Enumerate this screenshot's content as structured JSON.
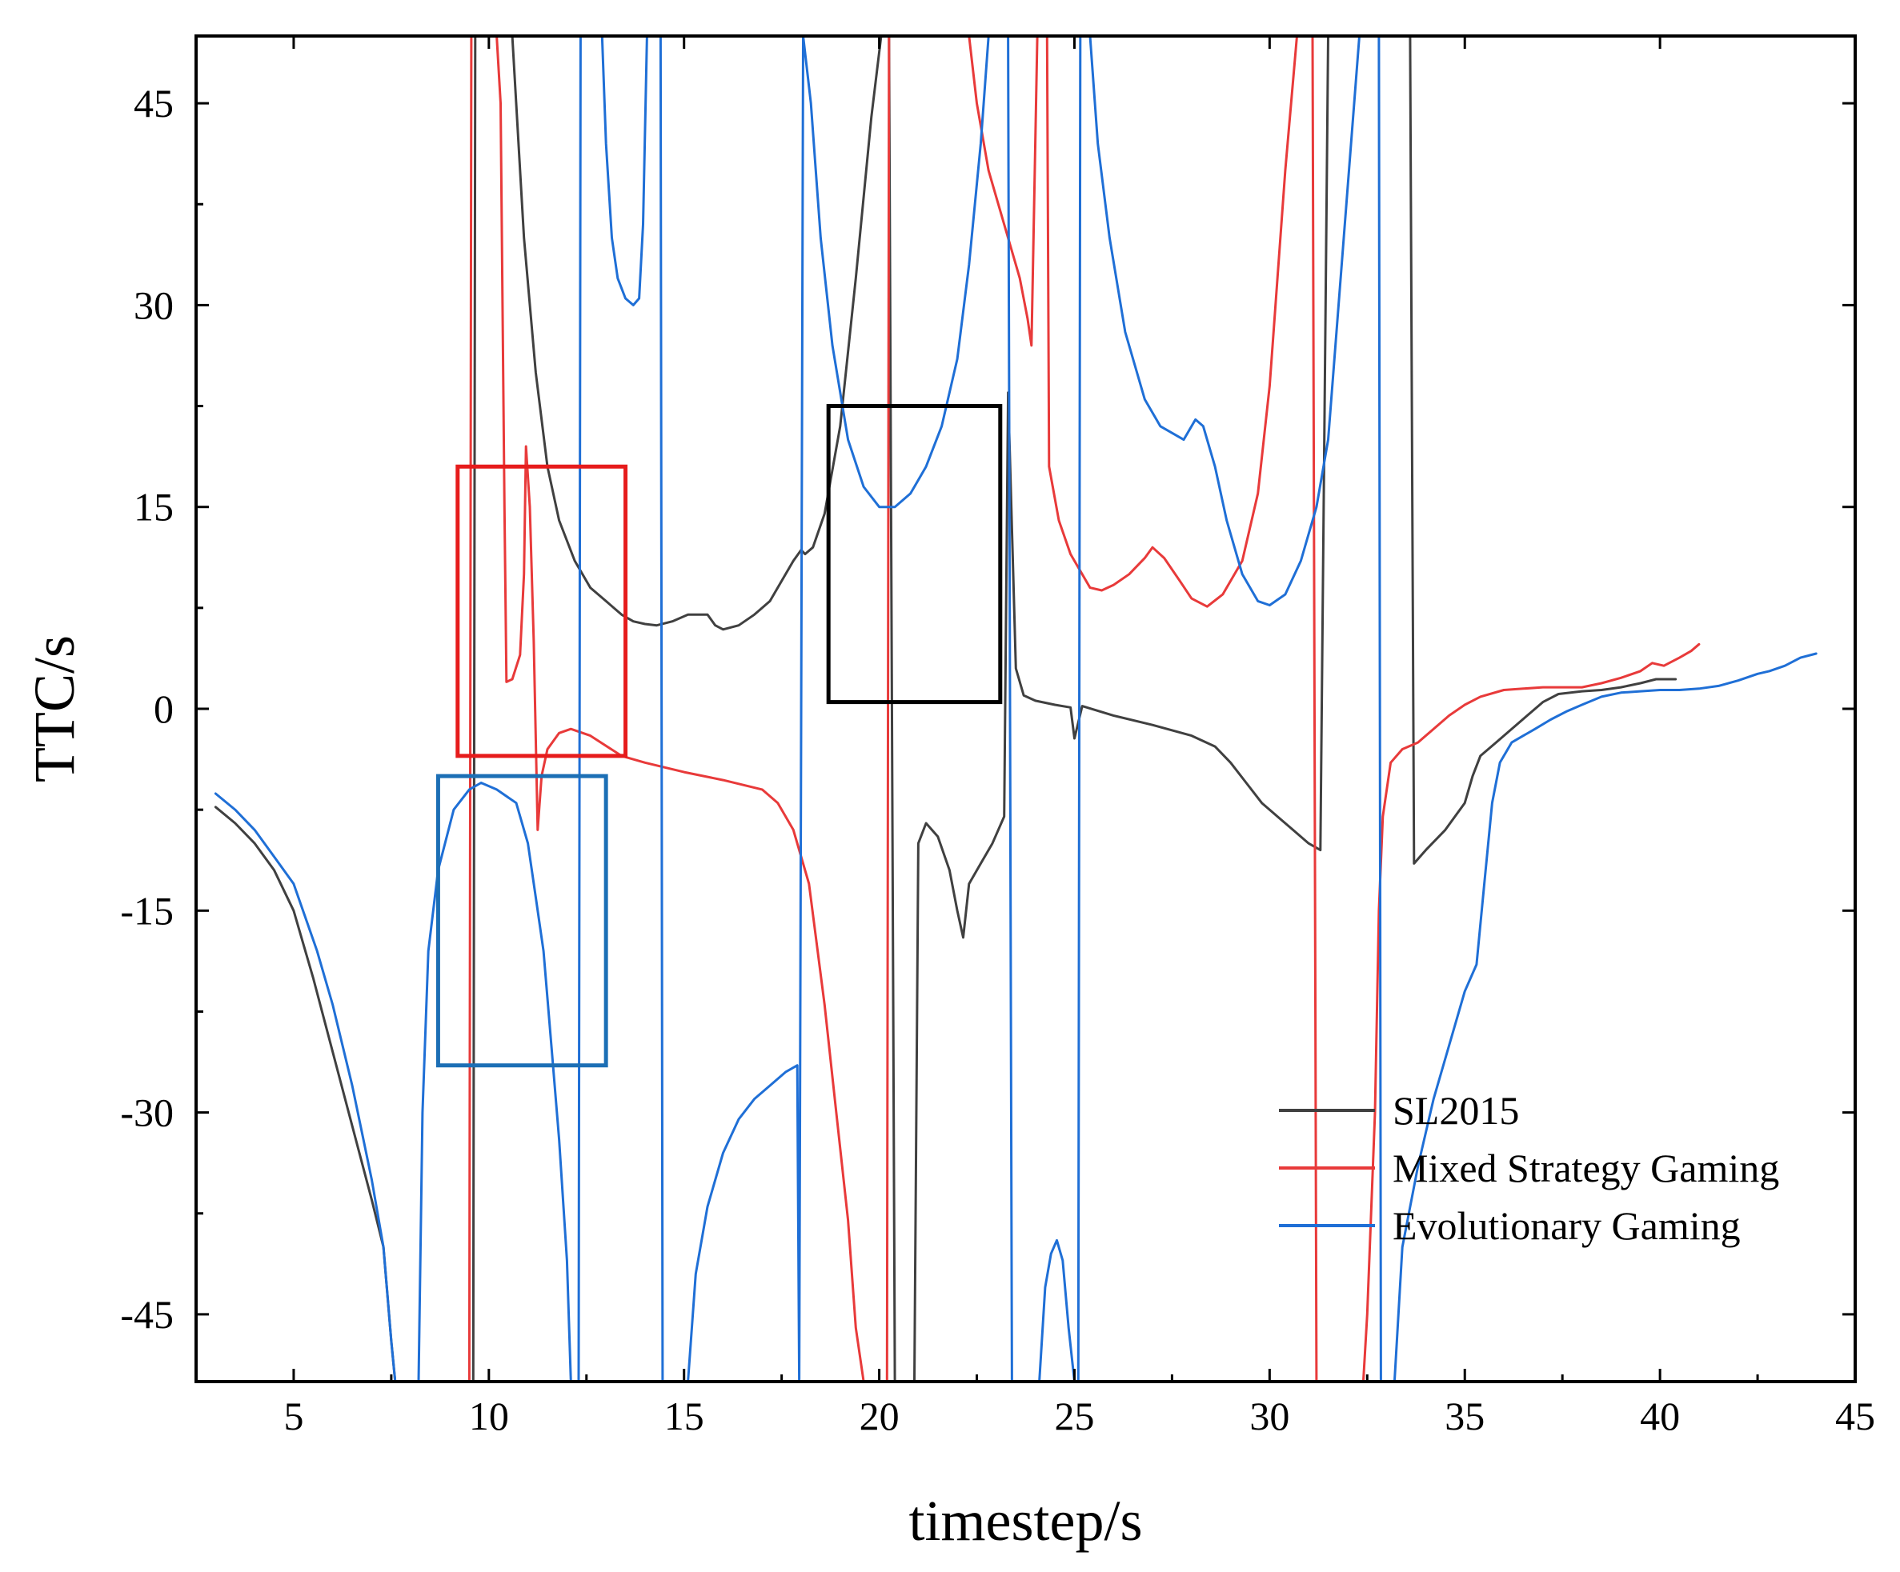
{
  "chart_data": {
    "type": "line",
    "title": "",
    "xlabel": "timestep/s",
    "ylabel": "TTC/s",
    "xlim": [
      2.5,
      45
    ],
    "ylim": [
      -50,
      50
    ],
    "xticks": [
      5,
      10,
      15,
      20,
      25,
      30,
      35,
      40,
      45
    ],
    "yticks": [
      -45,
      -30,
      -15,
      0,
      15,
      30,
      45
    ],
    "grid": false,
    "legend_position": "bottom-right",
    "series": [
      {
        "name": "SL2015",
        "color": "#404040",
        "points": [
          [
            3,
            -7.3
          ],
          [
            3.5,
            -8.5
          ],
          [
            4,
            -10
          ],
          [
            4.5,
            -12
          ],
          [
            5,
            -15
          ],
          [
            5.5,
            -20
          ],
          [
            6,
            -25.5
          ],
          [
            6.5,
            -31
          ],
          [
            7,
            -36.5
          ],
          [
            7.3,
            -40
          ],
          [
            7.5,
            -47
          ],
          [
            7.6,
            -50
          ],
          [
            9.6,
            -50
          ],
          [
            9.65,
            50
          ],
          [
            10.6,
            50
          ],
          [
            10.9,
            35
          ],
          [
            11.2,
            25
          ],
          [
            11.5,
            18
          ],
          [
            11.8,
            14
          ],
          [
            12.2,
            11
          ],
          [
            12.6,
            9
          ],
          [
            13,
            8
          ],
          [
            13.4,
            7
          ],
          [
            13.7,
            6.5
          ],
          [
            14,
            6.3
          ],
          [
            14.3,
            6.2
          ],
          [
            14.7,
            6.5
          ],
          [
            15.1,
            7
          ],
          [
            15.6,
            7
          ],
          [
            15.8,
            6.2
          ],
          [
            16,
            5.9
          ],
          [
            16.4,
            6.2
          ],
          [
            16.8,
            7
          ],
          [
            17.2,
            8
          ],
          [
            17.5,
            9.5
          ],
          [
            17.8,
            11
          ],
          [
            18,
            11.8
          ],
          [
            18.1,
            11.5
          ],
          [
            18.3,
            12
          ],
          [
            18.6,
            14.5
          ],
          [
            19,
            21
          ],
          [
            19.4,
            32
          ],
          [
            19.8,
            44
          ],
          [
            20.05,
            50
          ],
          [
            20.25,
            50
          ],
          [
            20.4,
            -50
          ],
          [
            20.9,
            -50
          ],
          [
            21,
            -10
          ],
          [
            21.2,
            -8.5
          ],
          [
            21.5,
            -9.5
          ],
          [
            21.8,
            -12
          ],
          [
            22,
            -15
          ],
          [
            22.15,
            -17
          ],
          [
            22.3,
            -13
          ],
          [
            22.6,
            -11.5
          ],
          [
            22.9,
            -10
          ],
          [
            23.2,
            -8
          ],
          [
            23.3,
            23.5
          ],
          [
            23.5,
            3
          ],
          [
            23.7,
            1
          ],
          [
            24,
            0.6
          ],
          [
            24.5,
            0.3
          ],
          [
            24.9,
            0.1
          ],
          [
            25,
            -2.2
          ],
          [
            25.2,
            0.2
          ],
          [
            26,
            -0.5
          ],
          [
            27,
            -1.2
          ],
          [
            28,
            -2
          ],
          [
            28.6,
            -2.8
          ],
          [
            29,
            -4
          ],
          [
            29.4,
            -5.5
          ],
          [
            29.8,
            -7
          ],
          [
            30.2,
            -8
          ],
          [
            30.6,
            -9
          ],
          [
            31,
            -10
          ],
          [
            31.3,
            -10.5
          ],
          [
            31.5,
            50
          ],
          [
            33.6,
            50
          ],
          [
            33.7,
            -11.5
          ],
          [
            34,
            -10.5
          ],
          [
            34.5,
            -9
          ],
          [
            35,
            -7
          ],
          [
            35.2,
            -5
          ],
          [
            35.4,
            -3.5
          ],
          [
            35.8,
            -2.5
          ],
          [
            36.2,
            -1.5
          ],
          [
            36.6,
            -0.5
          ],
          [
            37,
            0.5
          ],
          [
            37.4,
            1.1
          ],
          [
            38,
            1.3
          ],
          [
            38.5,
            1.4
          ],
          [
            39,
            1.6
          ],
          [
            39.5,
            1.9
          ],
          [
            39.9,
            2.2
          ],
          [
            40.4,
            2.2
          ]
        ]
      },
      {
        "name": "Mixed Strategy Gaming",
        "color": "#e83a3a",
        "points": [
          [
            7.5,
            -50
          ],
          [
            9.5,
            -50
          ],
          [
            9.55,
            50
          ],
          [
            10.2,
            50
          ],
          [
            10.3,
            45
          ],
          [
            10.35,
            30
          ],
          [
            10.4,
            15
          ],
          [
            10.45,
            2
          ],
          [
            10.6,
            2.2
          ],
          [
            10.8,
            4
          ],
          [
            10.9,
            10
          ],
          [
            10.95,
            19.5
          ],
          [
            11.05,
            15
          ],
          [
            11.15,
            5
          ],
          [
            11.25,
            -9
          ],
          [
            11.35,
            -5
          ],
          [
            11.5,
            -3
          ],
          [
            11.8,
            -1.8
          ],
          [
            12.1,
            -1.5
          ],
          [
            12.6,
            -2
          ],
          [
            13.4,
            -3.5
          ],
          [
            14,
            -4
          ],
          [
            15,
            -4.7
          ],
          [
            16,
            -5.3
          ],
          [
            17,
            -6
          ],
          [
            17.4,
            -7
          ],
          [
            17.8,
            -9
          ],
          [
            18.2,
            -13
          ],
          [
            18.6,
            -22
          ],
          [
            18.9,
            -30
          ],
          [
            19.2,
            -38
          ],
          [
            19.4,
            -46
          ],
          [
            19.6,
            -50
          ],
          [
            20.2,
            -50
          ],
          [
            20.25,
            50
          ],
          [
            22.3,
            50
          ],
          [
            22.5,
            45
          ],
          [
            22.8,
            40
          ],
          [
            23.2,
            36
          ],
          [
            23.6,
            32
          ],
          [
            23.8,
            29
          ],
          [
            23.9,
            27
          ],
          [
            24.05,
            50
          ],
          [
            24.3,
            50
          ],
          [
            24.35,
            18
          ],
          [
            24.6,
            14
          ],
          [
            24.9,
            11.5
          ],
          [
            25.2,
            10
          ],
          [
            25.4,
            9
          ],
          [
            25.7,
            8.8
          ],
          [
            26,
            9.2
          ],
          [
            26.4,
            10
          ],
          [
            26.8,
            11.2
          ],
          [
            27,
            12
          ],
          [
            27.3,
            11.2
          ],
          [
            27.7,
            9.5
          ],
          [
            28,
            8.2
          ],
          [
            28.4,
            7.6
          ],
          [
            28.8,
            8.5
          ],
          [
            29.3,
            11
          ],
          [
            29.7,
            16
          ],
          [
            30,
            24
          ],
          [
            30.4,
            40
          ],
          [
            30.7,
            50
          ],
          [
            31.1,
            50
          ],
          [
            31.2,
            -50
          ],
          [
            32.4,
            -50
          ],
          [
            32.5,
            -45
          ],
          [
            32.7,
            -30
          ],
          [
            32.8,
            -15
          ],
          [
            32.9,
            -8
          ],
          [
            33.1,
            -4
          ],
          [
            33.4,
            -3
          ],
          [
            33.8,
            -2.5
          ],
          [
            34.2,
            -1.5
          ],
          [
            34.6,
            -0.5
          ],
          [
            35,
            0.3
          ],
          [
            35.4,
            0.9
          ],
          [
            36,
            1.4
          ],
          [
            36.5,
            1.5
          ],
          [
            37,
            1.6
          ],
          [
            37.5,
            1.6
          ],
          [
            38,
            1.6
          ],
          [
            38.5,
            1.9
          ],
          [
            39,
            2.3
          ],
          [
            39.5,
            2.8
          ],
          [
            39.8,
            3.4
          ],
          [
            40.1,
            3.2
          ],
          [
            40.5,
            3.8
          ],
          [
            40.8,
            4.3
          ],
          [
            41,
            4.8
          ]
        ]
      },
      {
        "name": "Evolutionary Gaming",
        "color": "#1f6fd6",
        "points": [
          [
            3,
            -6.3
          ],
          [
            3.5,
            -7.5
          ],
          [
            4,
            -9
          ],
          [
            4.5,
            -11
          ],
          [
            5,
            -13
          ],
          [
            5.6,
            -18
          ],
          [
            6,
            -22
          ],
          [
            6.5,
            -28
          ],
          [
            7,
            -35
          ],
          [
            7.3,
            -40
          ],
          [
            7.5,
            -47
          ],
          [
            7.6,
            -50
          ],
          [
            8.2,
            -50
          ],
          [
            8.3,
            -30
          ],
          [
            8.45,
            -18
          ],
          [
            8.7,
            -12
          ],
          [
            9.1,
            -7.5
          ],
          [
            9.5,
            -6
          ],
          [
            9.8,
            -5.5
          ],
          [
            10.2,
            -6
          ],
          [
            10.7,
            -7
          ],
          [
            11,
            -10
          ],
          [
            11.2,
            -14
          ],
          [
            11.4,
            -18
          ],
          [
            11.6,
            -25
          ],
          [
            11.8,
            -32
          ],
          [
            12,
            -41
          ],
          [
            12.1,
            -50
          ],
          [
            12.3,
            -50
          ],
          [
            12.35,
            50
          ],
          [
            12.9,
            50
          ],
          [
            13,
            42
          ],
          [
            13.15,
            35
          ],
          [
            13.3,
            32
          ],
          [
            13.5,
            30.5
          ],
          [
            13.7,
            30
          ],
          [
            13.85,
            30.5
          ],
          [
            13.95,
            36
          ],
          [
            14.05,
            50
          ],
          [
            14.4,
            50
          ],
          [
            14.45,
            -50
          ],
          [
            15.1,
            -50
          ],
          [
            15.3,
            -42
          ],
          [
            15.6,
            -37
          ],
          [
            16,
            -33
          ],
          [
            16.4,
            -30.5
          ],
          [
            16.8,
            -29
          ],
          [
            17.2,
            -28
          ],
          [
            17.6,
            -27
          ],
          [
            17.9,
            -26.5
          ],
          [
            17.95,
            -50
          ],
          [
            18.05,
            50
          ],
          [
            18.25,
            45
          ],
          [
            18.5,
            35
          ],
          [
            18.8,
            27
          ],
          [
            19.2,
            20
          ],
          [
            19.6,
            16.5
          ],
          [
            20,
            15
          ],
          [
            20.4,
            15
          ],
          [
            20.8,
            16
          ],
          [
            21.2,
            18
          ],
          [
            21.6,
            21
          ],
          [
            22,
            26
          ],
          [
            22.3,
            33
          ],
          [
            22.6,
            42
          ],
          [
            22.8,
            50
          ],
          [
            23.3,
            50
          ],
          [
            23.4,
            -50
          ],
          [
            24.1,
            -50
          ],
          [
            24.25,
            -43
          ],
          [
            24.4,
            -40.5
          ],
          [
            24.55,
            -39.5
          ],
          [
            24.7,
            -41
          ],
          [
            24.85,
            -46
          ],
          [
            25,
            -50
          ],
          [
            25.1,
            -50
          ],
          [
            25.15,
            50
          ],
          [
            25.4,
            50
          ],
          [
            25.6,
            42
          ],
          [
            25.9,
            35
          ],
          [
            26.3,
            28
          ],
          [
            26.8,
            23
          ],
          [
            27.2,
            21
          ],
          [
            27.5,
            20.5
          ],
          [
            27.8,
            20
          ],
          [
            28.1,
            21.5
          ],
          [
            28.3,
            21
          ],
          [
            28.6,
            18
          ],
          [
            28.9,
            14
          ],
          [
            29.3,
            10
          ],
          [
            29.7,
            8
          ],
          [
            30,
            7.7
          ],
          [
            30.4,
            8.5
          ],
          [
            30.8,
            11
          ],
          [
            31.2,
            15
          ],
          [
            31.5,
            20
          ],
          [
            31.9,
            35
          ],
          [
            32.3,
            50
          ],
          [
            32.8,
            50
          ],
          [
            32.85,
            -50
          ],
          [
            33.2,
            -50
          ],
          [
            33.4,
            -40
          ],
          [
            33.8,
            -34
          ],
          [
            34.2,
            -29
          ],
          [
            34.6,
            -25
          ],
          [
            35,
            -21
          ],
          [
            35.3,
            -19
          ],
          [
            35.5,
            -13
          ],
          [
            35.7,
            -7
          ],
          [
            35.9,
            -4
          ],
          [
            36.2,
            -2.5
          ],
          [
            36.5,
            -2
          ],
          [
            36.8,
            -1.5
          ],
          [
            37.2,
            -0.8
          ],
          [
            37.6,
            -0.2
          ],
          [
            38,
            0.3
          ],
          [
            38.5,
            0.9
          ],
          [
            39,
            1.2
          ],
          [
            39.5,
            1.3
          ],
          [
            40,
            1.4
          ],
          [
            40.5,
            1.4
          ],
          [
            41,
            1.5
          ],
          [
            41.5,
            1.7
          ],
          [
            42,
            2.1
          ],
          [
            42.5,
            2.6
          ],
          [
            42.8,
            2.8
          ],
          [
            43.2,
            3.2
          ],
          [
            43.6,
            3.8
          ],
          [
            44,
            4.1
          ]
        ]
      }
    ],
    "annotations": [
      {
        "type": "highlight-box",
        "color": "#e61c1c",
        "x_range": [
          9.2,
          13.5
        ],
        "y_range": [
          -3.5,
          18
        ]
      },
      {
        "type": "highlight-box",
        "color": "#1c6fb5",
        "x_range": [
          8.7,
          13
        ],
        "y_range": [
          -26.5,
          -5
        ]
      },
      {
        "type": "highlight-box",
        "color": "#000000",
        "x_range": [
          18.7,
          23.1
        ],
        "y_range": [
          0.5,
          22.5
        ]
      }
    ]
  }
}
